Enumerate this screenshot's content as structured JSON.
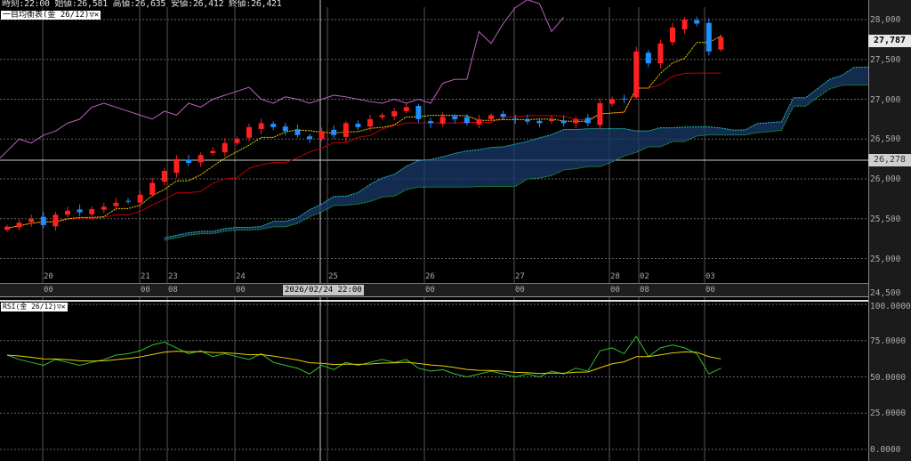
{
  "header": {
    "time_label": "時刻:22:00",
    "open": "始値:26,581",
    "high": "高値:26,635",
    "low": "安値:26,412",
    "close": "終値:26,421"
  },
  "main_panel": {
    "indicator_tag": "一目均衡表(金 26/12)▽✕"
  },
  "rsi_panel": {
    "indicator_tag": "RSI(金 26/12)▽✕"
  },
  "price_axis": {
    "ticks": [
      "28,000",
      "27,500",
      "27,000",
      "26,500",
      "26,000",
      "25,500",
      "25,000",
      "24,500"
    ],
    "current_price": "27,787",
    "crosshair_price": "26,278"
  },
  "rsi_axis": {
    "ticks": [
      "100.0000",
      "75.0000",
      "50.0000",
      "25.0000",
      "0.0000"
    ]
  },
  "time_axis": {
    "days": [
      {
        "day": "20",
        "hour": "00"
      },
      {
        "day": "21",
        "hour": "00"
      },
      {
        "day": "23",
        "hour": "08"
      },
      {
        "day": "24",
        "hour": "00"
      },
      {
        "day": "25",
        "hour": ""
      },
      {
        "day": "26",
        "hour": "00"
      },
      {
        "day": "27",
        "hour": "00"
      },
      {
        "day": "28",
        "hour": "00"
      },
      {
        "day": "02",
        "hour": "08"
      },
      {
        "day": "03",
        "hour": "00"
      }
    ],
    "crosshair_time": "2026/02/24 22:00"
  },
  "colors": {
    "up": "#ff2020",
    "down": "#1e90ff",
    "tenkan": "#e6d200",
    "kijun": "#c00000",
    "chikou": "#c060c0",
    "span_a": "#20c0c0",
    "span_b": "#20a040",
    "rsi": "#30c030",
    "rsi_signal": "#e6d200"
  },
  "chart_data": {
    "type": "candlestick",
    "ylim": [
      24500,
      28150
    ],
    "closes": [
      25400,
      25450,
      25500,
      25420,
      25550,
      25600,
      25580,
      25620,
      25650,
      25700,
      25720,
      25800,
      25950,
      26100,
      26250,
      26200,
      26300,
      26350,
      26450,
      26500,
      26650,
      26700,
      26650,
      26600,
      26550,
      26500,
      26600,
      26550,
      26700,
      26650,
      26750,
      26800,
      26850,
      26900,
      26750,
      26700,
      26780,
      26750,
      26700,
      26750,
      26800,
      26780,
      26750,
      26720,
      26700,
      26750,
      26700,
      26750,
      26700,
      26950,
      27000,
      27000,
      27600,
      27450,
      27700,
      27900,
      28000,
      27950,
      27600,
      27780
    ],
    "rsi": [
      65,
      62,
      60,
      58,
      62,
      60,
      58,
      60,
      62,
      65,
      66,
      68,
      72,
      74,
      70,
      66,
      68,
      64,
      66,
      64,
      62,
      66,
      60,
      58,
      56,
      52,
      58,
      55,
      60,
      58,
      60,
      62,
      60,
      62,
      56,
      54,
      55,
      52,
      50,
      52,
      54,
      52,
      50,
      52,
      50,
      54,
      52,
      56,
      54,
      68,
      70,
      66,
      78,
      64,
      70,
      72,
      70,
      66,
      52,
      56
    ],
    "rsi_ylim": [
      0,
      100
    ]
  }
}
